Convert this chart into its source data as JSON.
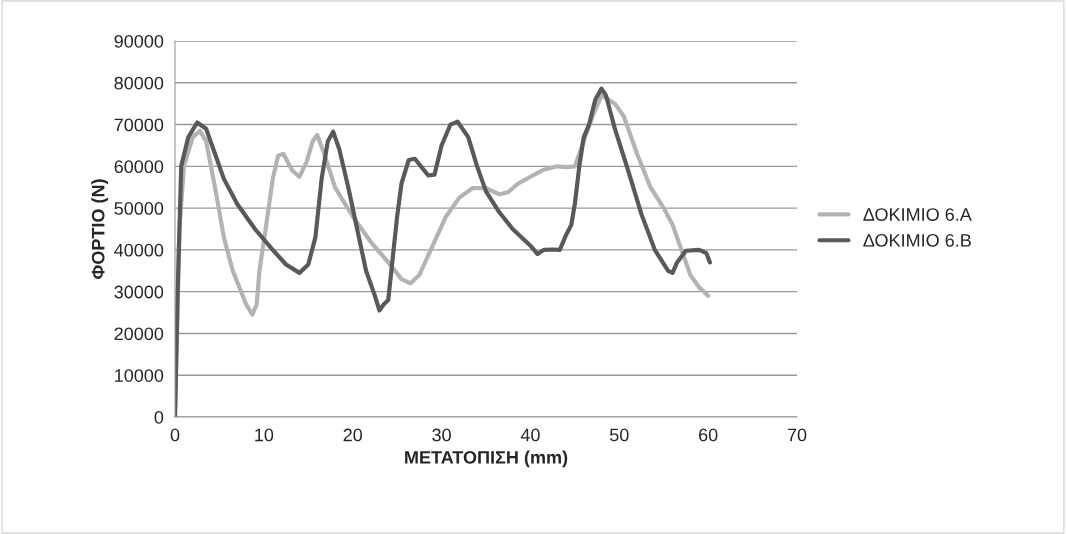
{
  "chart_data": {
    "type": "line",
    "xlabel": "ΜΕΤΑΤΟΠΙΣΗ (mm)",
    "ylabel": "ΦΟΡΤΙΟ (N)",
    "xlim": [
      0,
      70
    ],
    "xticks": [
      0,
      10,
      20,
      30,
      40,
      50,
      60,
      70
    ],
    "ylim": [
      0,
      90000
    ],
    "yticks": [
      0,
      10000,
      20000,
      30000,
      40000,
      50000,
      60000,
      70000,
      80000,
      90000
    ],
    "grid": "y",
    "legend": "right",
    "marker": "none",
    "line_style": "solid",
    "series": [
      {
        "name": "ΔΟΚΙΜΙΟ 6.A",
        "color": "#b3b3b3",
        "x": [
          0,
          0.5,
          1,
          2,
          2.8,
          3.5,
          4.5,
          5.5,
          6.5,
          8,
          8.7,
          9.2,
          9.5,
          10.2,
          11,
          11.6,
          12.2,
          13.2,
          14,
          14.8,
          15.5,
          16,
          16.8,
          18,
          20,
          22,
          24,
          25.5,
          26.5,
          27.5,
          29,
          30.5,
          32,
          33.5,
          35,
          36.5,
          37.5,
          38.5,
          40,
          41.5,
          43,
          44,
          45,
          46,
          47,
          48,
          49.5,
          50.5,
          52,
          53.5,
          55,
          56,
          57,
          58,
          59,
          60
        ],
        "values": [
          0,
          45000,
          60000,
          67000,
          68500,
          66000,
          55000,
          43000,
          35000,
          27000,
          24500,
          27000,
          35000,
          45000,
          57000,
          62500,
          63000,
          59000,
          57500,
          61000,
          66000,
          67500,
          63000,
          55000,
          48000,
          42000,
          37000,
          33000,
          32000,
          34000,
          41000,
          48000,
          52500,
          54800,
          54800,
          53300,
          53800,
          55700,
          57500,
          59200,
          60000,
          59800,
          60000,
          66000,
          72000,
          77000,
          75000,
          72000,
          63000,
          55000,
          50000,
          46000,
          40000,
          34000,
          31000,
          29000
        ]
      },
      {
        "name": "ΔΟΚΙΜΙΟ 6.B",
        "color": "#595959",
        "x": [
          0,
          0.3,
          0.7,
          1.5,
          2.5,
          3.5,
          4.5,
          5.5,
          7,
          9,
          11,
          12.5,
          14,
          15,
          15.8,
          16.5,
          17.2,
          17.8,
          18.5,
          19.5,
          20.5,
          21.5,
          22.5,
          23,
          23.5,
          24,
          24.5,
          25,
          25.5,
          26.3,
          27,
          28.5,
          29.2,
          30,
          31,
          31.8,
          33,
          34,
          35,
          36.5,
          38,
          40,
          40.8,
          41.5,
          42.5,
          43.3,
          44,
          44.6,
          45,
          45.5,
          46,
          46.6,
          47.3,
          48,
          48.5,
          49.5,
          51,
          52.5,
          54,
          55.5,
          56,
          56.5,
          57.5,
          59,
          59.8,
          60.2
        ],
        "values": [
          0,
          30000,
          60000,
          67000,
          70500,
          69000,
          63000,
          57000,
          51000,
          45000,
          40000,
          36500,
          34500,
          36500,
          43000,
          57000,
          66000,
          68300,
          64000,
          55000,
          45000,
          35000,
          29000,
          25500,
          27000,
          28000,
          38000,
          48000,
          56000,
          61500,
          61800,
          57800,
          58000,
          65000,
          70000,
          70700,
          67000,
          60000,
          54000,
          49000,
          45000,
          41000,
          39000,
          40000,
          40100,
          40000,
          43500,
          46000,
          51000,
          60000,
          67000,
          70000,
          76000,
          78600,
          77000,
          69000,
          59000,
          48500,
          40000,
          35000,
          34500,
          37000,
          39800,
          40000,
          39200,
          37000
        ]
      }
    ]
  }
}
